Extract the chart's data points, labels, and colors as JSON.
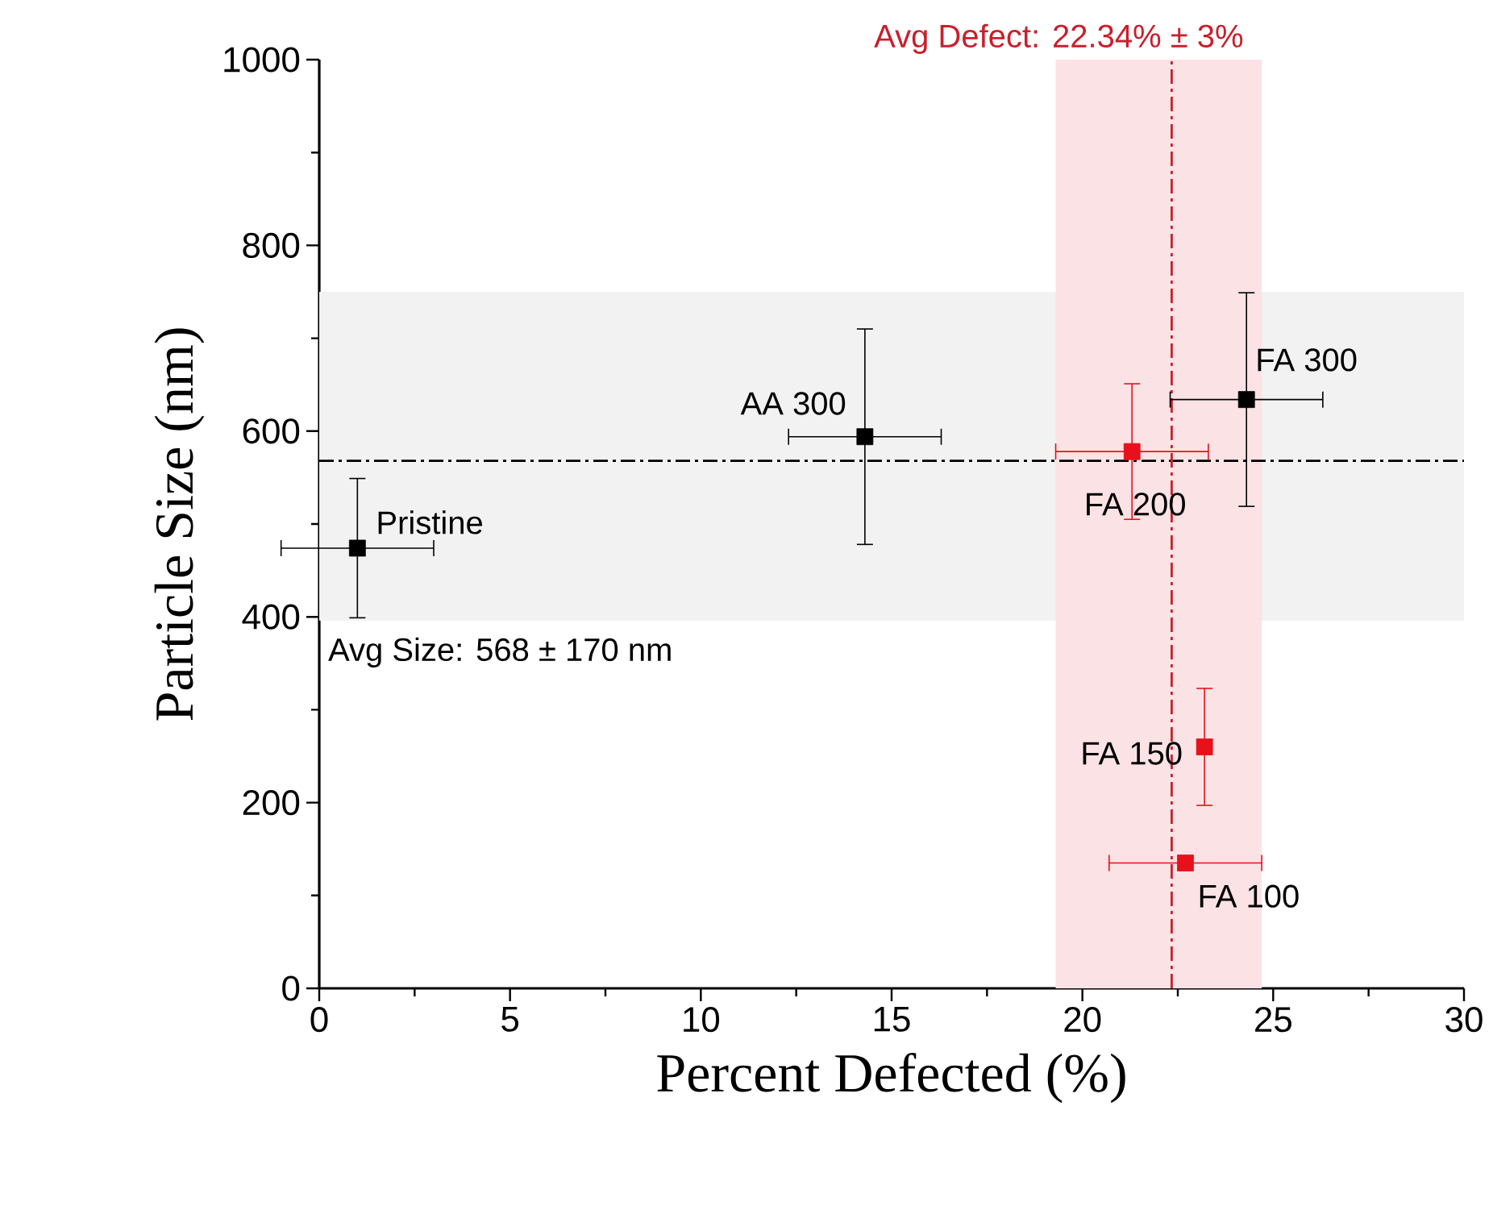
{
  "chart_data": {
    "type": "scatter",
    "xlabel": "Percent Defected (%)",
    "ylabel": "Particle Size (nm)",
    "xlim": [
      0,
      30
    ],
    "ylim": [
      0,
      1000
    ],
    "xticks": [
      0,
      5,
      10,
      15,
      20,
      25,
      30
    ],
    "yticks": [
      0,
      200,
      400,
      600,
      800,
      1000
    ],
    "marker": "square",
    "series": [
      {
        "color": "#000000",
        "x": [
          1.0,
          14.3,
          24.3
        ],
        "values": [
          474,
          594,
          634
        ],
        "errors": [
          75,
          116,
          115
        ],
        "xerrors": [
          2,
          2,
          2
        ]
      },
      {
        "color": "#e8101a",
        "x": [
          21.3,
          23.2,
          22.7
        ],
        "values": [
          578,
          260,
          135
        ],
        "errors": [
          73,
          63,
          null
        ],
        "xerrors": [
          2,
          null,
          2
        ]
      }
    ],
    "ref_lines": [
      {
        "axis": "y",
        "value": 568,
        "label": "Avg Size: 568 ± 170 nm",
        "color": "#000000",
        "line_style": "dashdot"
      },
      {
        "axis": "x",
        "value": 22.34,
        "label": "Avg Defect: 22.34% ± 3%",
        "color": "#c8202c",
        "line_style": "dashdot"
      }
    ],
    "bands": [
      {
        "axis": "y",
        "from": 396,
        "to": 750,
        "color": "#f2f2f2"
      },
      {
        "axis": "x",
        "from": 19.3,
        "to": 24.7,
        "color": "#fbe3e5"
      }
    ],
    "annotations": [
      {
        "text": "Pristine",
        "x": 1.0,
        "y": 474
      },
      {
        "text": "AA 300",
        "x": 14.3,
        "y": 594
      },
      {
        "text": "FA 300",
        "x": 24.3,
        "y": 634
      },
      {
        "text": "FA 200",
        "x": 21.3,
        "y": 578
      },
      {
        "text": "FA 150",
        "x": 23.2,
        "y": 260
      },
      {
        "text": "FA 100",
        "x": 22.7,
        "y": 135
      }
    ]
  }
}
